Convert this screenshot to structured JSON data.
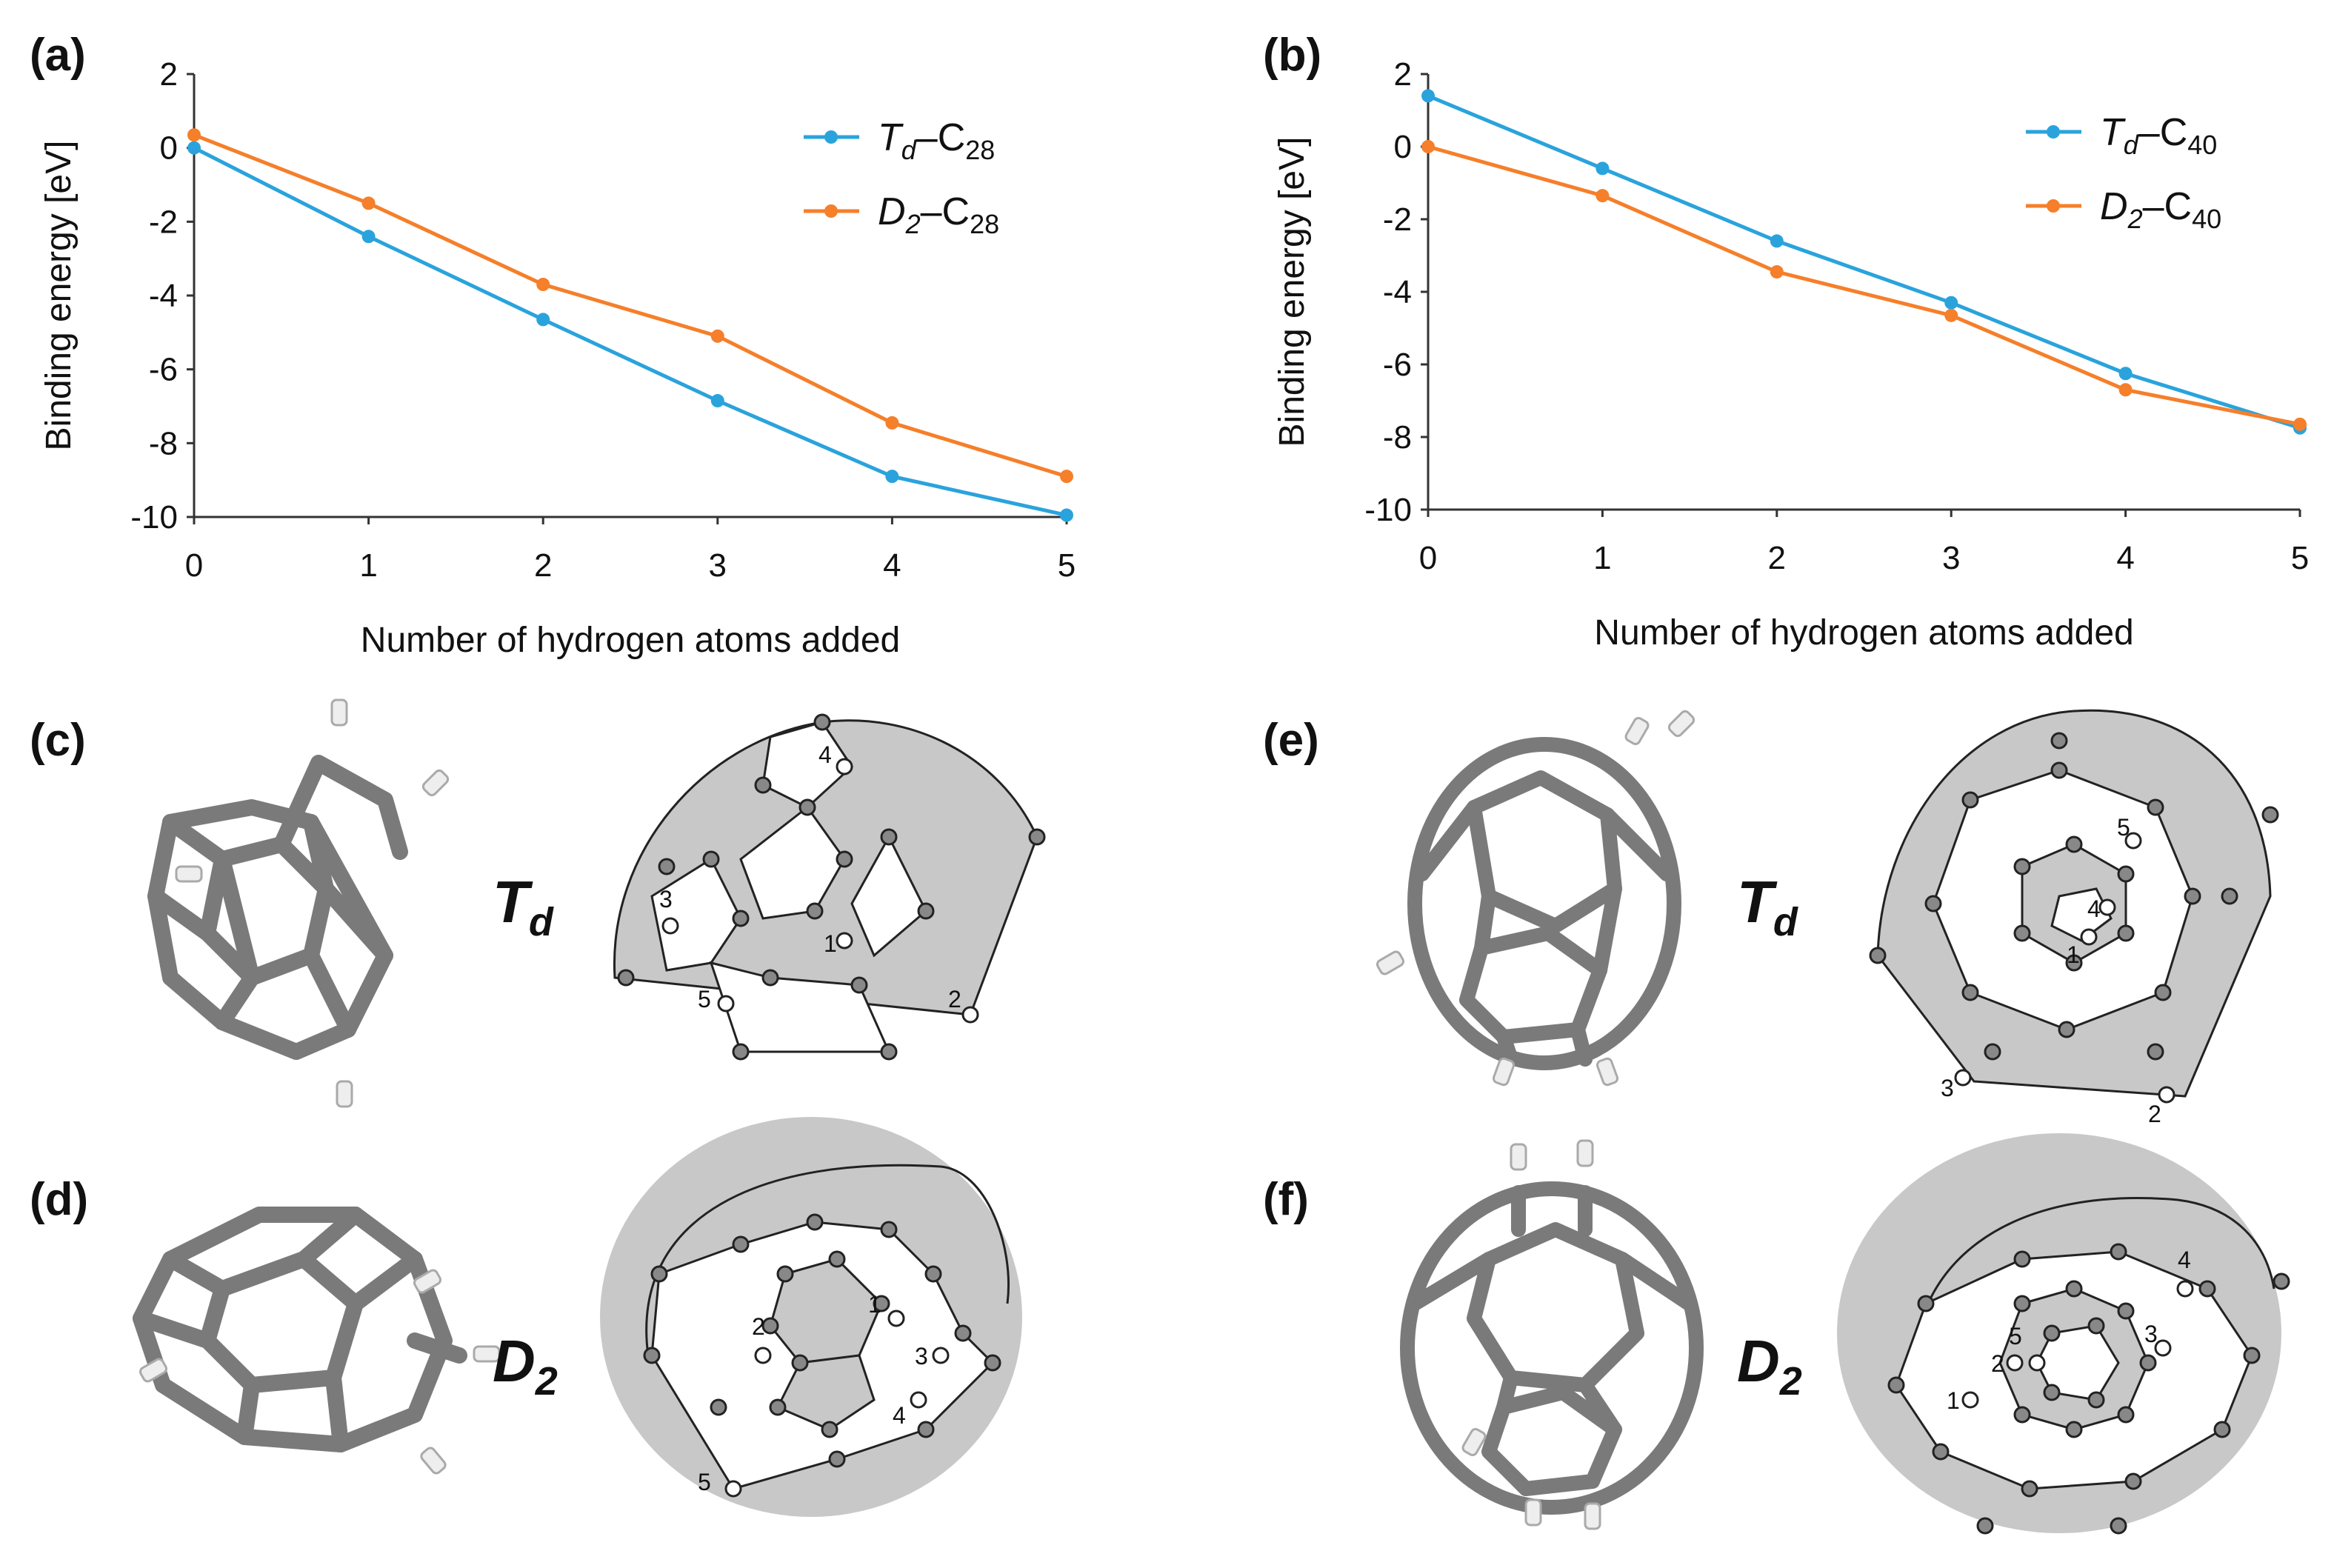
{
  "chart_data": [
    {
      "type": "line",
      "panel": "(a)",
      "x": [
        0,
        1,
        2,
        3,
        4,
        5
      ],
      "xlim": [
        0,
        5
      ],
      "ylim": [
        -10,
        2
      ],
      "xticks": [
        "0",
        "1",
        "2",
        "3",
        "4",
        "5"
      ],
      "yticks": [
        "2",
        "0",
        "-2",
        "-4",
        "-6",
        "-8",
        "-10"
      ],
      "xlabel": "Number of hydrogen atoms added",
      "ylabel": "Binding energy [eV]",
      "legend_position": "top-right",
      "series": [
        {
          "name_main": "T",
          "name_sub": "d",
          "name_rest": "–C",
          "name_num": "28",
          "color": "#2aa3dc",
          "values": [
            0.0,
            -2.4,
            -4.65,
            -6.85,
            -8.9,
            -9.95
          ]
        },
        {
          "name_main": "D",
          "name_sub": "2",
          "name_rest": "–C",
          "name_num": "28",
          "color": "#f57f2a",
          "values": [
            0.35,
            -1.5,
            -3.7,
            -5.1,
            -7.45,
            -8.9
          ]
        }
      ]
    },
    {
      "type": "line",
      "panel": "(b)",
      "x": [
        0,
        1,
        2,
        3,
        4,
        5
      ],
      "xlim": [
        0,
        5
      ],
      "ylim": [
        -10,
        2
      ],
      "xticks": [
        "0",
        "1",
        "2",
        "3",
        "4",
        "5"
      ],
      "yticks": [
        "2",
        "0",
        "-2",
        "-4",
        "-6",
        "-8",
        "-10"
      ],
      "xlabel": "Number of hydrogen atoms added",
      "ylabel": "Binding energy [eV]",
      "legend_position": "top-right",
      "series": [
        {
          "name_main": "T",
          "name_sub": "d",
          "name_rest": "–C",
          "name_num": "40",
          "color": "#2aa3dc",
          "values": [
            1.4,
            -0.6,
            -2.6,
            -4.3,
            -6.25,
            -7.75
          ]
        },
        {
          "name_main": "D",
          "name_sub": "2",
          "name_rest": "–C",
          "name_num": "40",
          "color": "#f57f2a",
          "values": [
            0.0,
            -1.35,
            -3.45,
            -4.65,
            -6.7,
            -7.65
          ]
        }
      ]
    }
  ],
  "structures": {
    "c": {
      "label": "(c)",
      "symbol_main": "T",
      "symbol_sub": "d",
      "numbers": [
        "1",
        "2",
        "3",
        "4",
        "5"
      ]
    },
    "d": {
      "label": "(d)",
      "symbol_main": "D",
      "symbol_sub": "2",
      "numbers": [
        "1",
        "2",
        "3",
        "4",
        "5"
      ]
    },
    "e": {
      "label": "(e)",
      "symbol_main": "T",
      "symbol_sub": "d",
      "numbers": [
        "1",
        "2",
        "3",
        "4",
        "5"
      ]
    },
    "f": {
      "label": "(f)",
      "symbol_main": "D",
      "symbol_sub": "2",
      "numbers": [
        "1",
        "2",
        "3",
        "4",
        "5"
      ]
    }
  },
  "colors": {
    "axis": "#333333",
    "bond": "#7a7a7a",
    "shade": "#c8c8c8",
    "node": "#888888"
  }
}
